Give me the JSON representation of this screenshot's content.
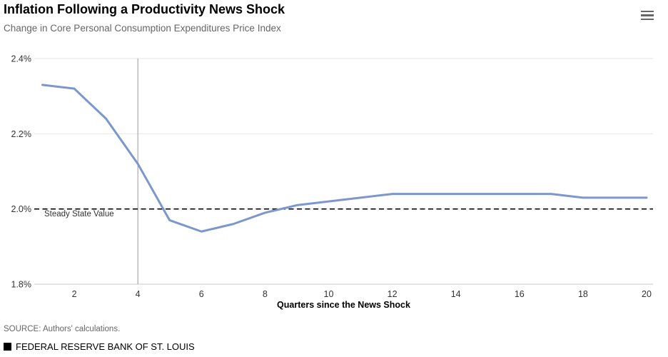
{
  "header": {
    "title": "Inflation Following a Productivity News Shock",
    "subtitle": "Change in Core Personal Consumption Expenditures Price Index"
  },
  "toolbar": {
    "menu_icon": "hamburger-menu-icon"
  },
  "chart_data": {
    "type": "line",
    "title": "Inflation Following a Productivity News Shock",
    "subtitle": "Change in Core Personal Consumption Expenditures Price Index",
    "xlabel": "Quarters since the News Shock",
    "ylabel": "",
    "xlim": [
      1,
      20
    ],
    "ylim": [
      1.8,
      2.4
    ],
    "x_ticks": [
      2,
      4,
      6,
      8,
      10,
      12,
      14,
      16,
      18,
      20
    ],
    "y_ticks": [
      1.8,
      2.0,
      2.2,
      2.4
    ],
    "y_tick_labels": [
      "1.8%",
      "2.0%",
      "2.2%",
      "2.4%"
    ],
    "grid": true,
    "legend_position": "none",
    "x": [
      1,
      2,
      3,
      4,
      5,
      6,
      7,
      8,
      9,
      10,
      11,
      12,
      13,
      14,
      15,
      16,
      17,
      18,
      19,
      20
    ],
    "series": [
      {
        "name": "Change in Core Personal Consumption Expenditures Price Index",
        "color": "#7c97ce",
        "values": [
          2.33,
          2.32,
          2.24,
          2.12,
          1.97,
          1.94,
          1.96,
          1.99,
          2.01,
          2.02,
          2.03,
          2.04,
          2.04,
          2.04,
          2.04,
          2.04,
          2.04,
          2.03,
          2.03,
          2.03
        ]
      }
    ],
    "annotations": [
      {
        "type": "hline",
        "y": 2.0,
        "label": "Steady State Value",
        "line_style": "dashed",
        "color": "#000000"
      },
      {
        "type": "vline",
        "x": 4,
        "line_style": "solid",
        "color": "#999999"
      }
    ]
  },
  "footer": {
    "source": "SOURCE: Authors' calculations.",
    "brand": "FEDERAL RESERVE BANK OF ST. LOUIS"
  },
  "colors": {
    "series_line": "#7c97ce",
    "gridline": "#e6e6e6",
    "axis_line": "#c9c9c9",
    "shock_line": "#999999",
    "reference_line": "#000000",
    "title": "#000000",
    "subtitle": "#666666",
    "tick_label": "#333333",
    "source_text": "#666666",
    "brand_text": "#000000",
    "menu_icon": "#666666"
  }
}
